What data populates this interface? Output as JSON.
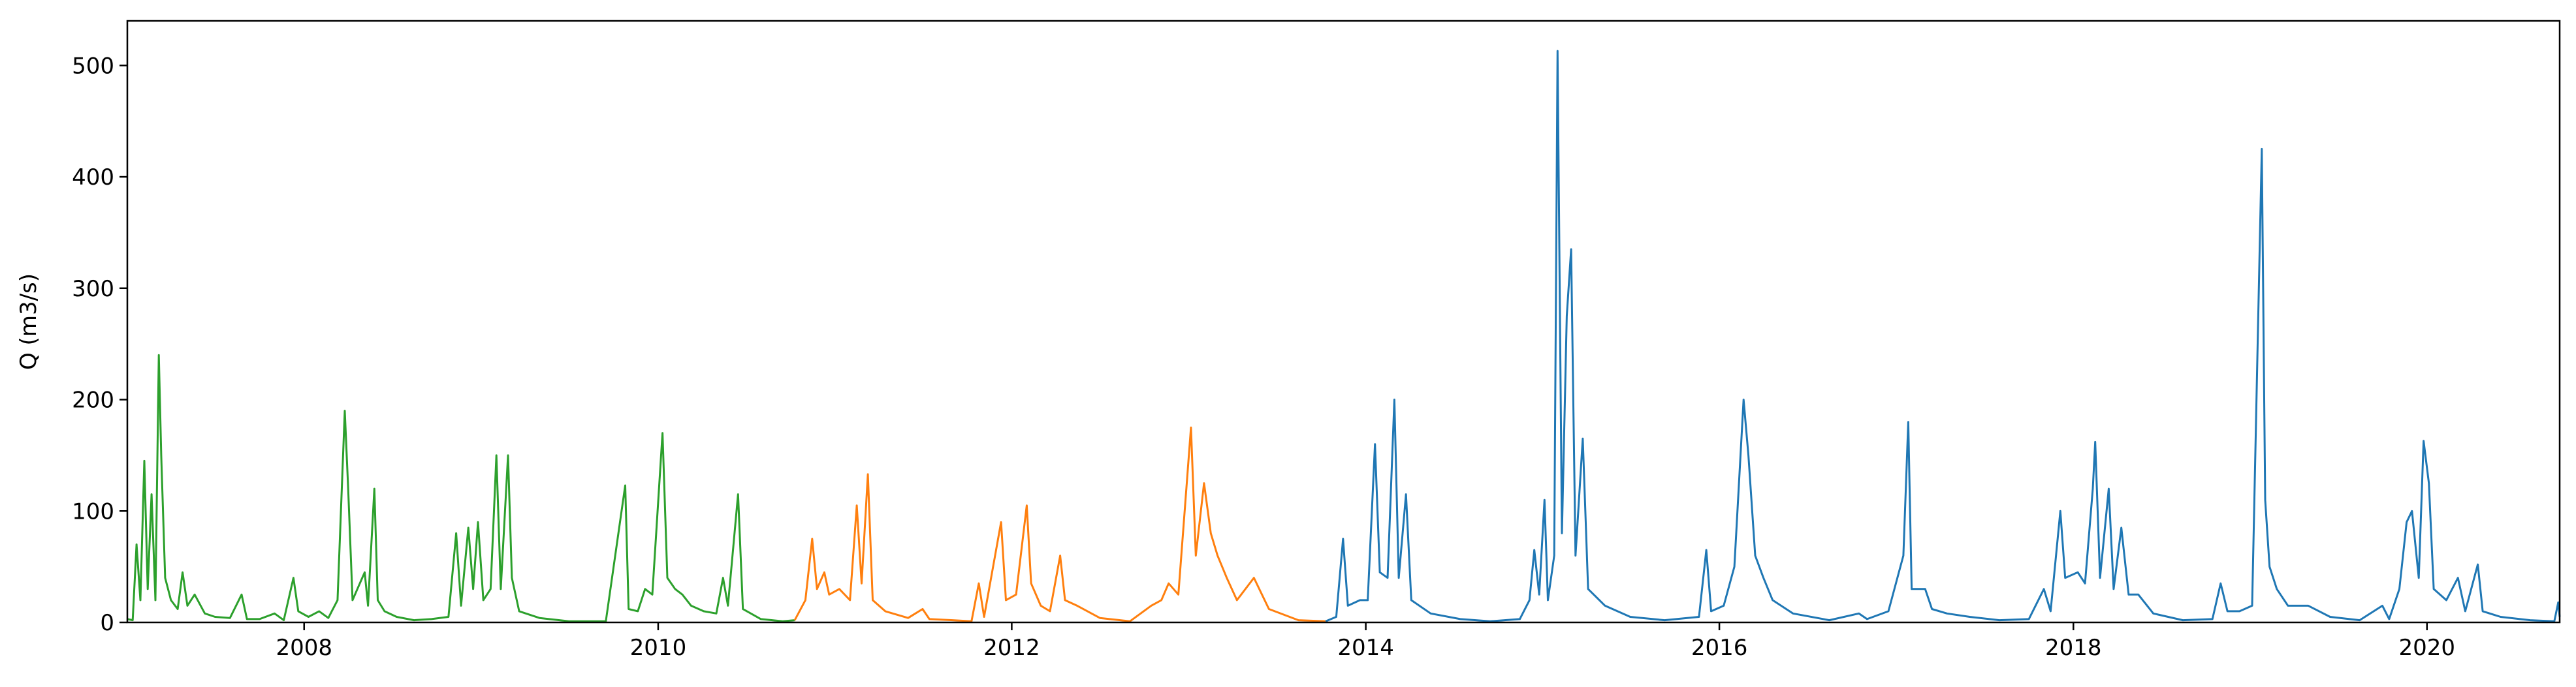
{
  "chart_data": {
    "type": "line",
    "title": "",
    "xlabel": "",
    "ylabel": "Q (m3/s)",
    "xlim": [
      "2007-01-01",
      "2020-10-01"
    ],
    "ylim": [
      0,
      540
    ],
    "x_ticks": [
      "2008",
      "2010",
      "2012",
      "2014",
      "2016",
      "2018",
      "2020"
    ],
    "y_ticks": [
      0,
      100,
      200,
      300,
      400,
      500
    ],
    "grid": false,
    "legend": "none",
    "series": [
      {
        "color": "#2ca02c",
        "points": [
          [
            "2007-01-01",
            3
          ],
          [
            "2007-01-12",
            2
          ],
          [
            "2007-01-20",
            70
          ],
          [
            "2007-01-28",
            20
          ],
          [
            "2007-02-05",
            145
          ],
          [
            "2007-02-12",
            30
          ],
          [
            "2007-02-20",
            115
          ],
          [
            "2007-02-28",
            20
          ],
          [
            "2007-03-07",
            240
          ],
          [
            "2007-03-12",
            150
          ],
          [
            "2007-03-20",
            40
          ],
          [
            "2007-04-01",
            20
          ],
          [
            "2007-04-15",
            12
          ],
          [
            "2007-04-25",
            45
          ],
          [
            "2007-05-05",
            15
          ],
          [
            "2007-05-20",
            25
          ],
          [
            "2007-06-10",
            8
          ],
          [
            "2007-07-01",
            5
          ],
          [
            "2007-08-01",
            4
          ],
          [
            "2007-08-25",
            25
          ],
          [
            "2007-09-05",
            3
          ],
          [
            "2007-10-01",
            3
          ],
          [
            "2007-11-01",
            8
          ],
          [
            "2007-11-20",
            2
          ],
          [
            "2007-12-10",
            40
          ],
          [
            "2007-12-20",
            10
          ],
          [
            "2008-01-10",
            5
          ],
          [
            "2008-02-01",
            10
          ],
          [
            "2008-02-20",
            4
          ],
          [
            "2008-03-10",
            20
          ],
          [
            "2008-03-25",
            190
          ],
          [
            "2008-04-01",
            120
          ],
          [
            "2008-04-10",
            20
          ],
          [
            "2008-04-20",
            30
          ],
          [
            "2008-05-05",
            45
          ],
          [
            "2008-05-12",
            15
          ],
          [
            "2008-05-25",
            120
          ],
          [
            "2008-06-01",
            20
          ],
          [
            "2008-06-15",
            10
          ],
          [
            "2008-07-10",
            5
          ],
          [
            "2008-08-15",
            2
          ],
          [
            "2008-09-20",
            3
          ],
          [
            "2008-10-25",
            5
          ],
          [
            "2008-11-10",
            80
          ],
          [
            "2008-11-20",
            15
          ],
          [
            "2008-12-05",
            85
          ],
          [
            "2008-12-15",
            30
          ],
          [
            "2008-12-25",
            90
          ],
          [
            "2009-01-05",
            20
          ],
          [
            "2009-01-20",
            30
          ],
          [
            "2009-02-01",
            150
          ],
          [
            "2009-02-10",
            30
          ],
          [
            "2009-02-25",
            150
          ],
          [
            "2009-03-05",
            40
          ],
          [
            "2009-03-20",
            10
          ],
          [
            "2009-05-01",
            4
          ],
          [
            "2009-07-01",
            1
          ],
          [
            "2009-09-15",
            1
          ],
          [
            "2009-10-25",
            123
          ],
          [
            "2009-11-01",
            12
          ],
          [
            "2009-11-20",
            10
          ],
          [
            "2009-12-05",
            30
          ],
          [
            "2009-12-20",
            25
          ],
          [
            "2010-01-10",
            170
          ],
          [
            "2010-01-20",
            40
          ],
          [
            "2010-02-05",
            30
          ],
          [
            "2010-02-20",
            25
          ],
          [
            "2010-03-10",
            15
          ],
          [
            "2010-04-05",
            10
          ],
          [
            "2010-05-01",
            8
          ],
          [
            "2010-05-15",
            40
          ],
          [
            "2010-05-25",
            15
          ],
          [
            "2010-06-15",
            115
          ],
          [
            "2010-06-25",
            12
          ],
          [
            "2010-08-01",
            3
          ],
          [
            "2010-09-15",
            1
          ],
          [
            "2010-10-10",
            2
          ]
        ]
      },
      {
        "color": "#ff7f0e",
        "points": [
          [
            "2010-10-10",
            2
          ],
          [
            "2010-11-01",
            20
          ],
          [
            "2010-11-15",
            75
          ],
          [
            "2010-11-25",
            30
          ],
          [
            "2010-12-10",
            45
          ],
          [
            "2010-12-20",
            25
          ],
          [
            "2011-01-10",
            30
          ],
          [
            "2011-02-01",
            20
          ],
          [
            "2011-02-15",
            105
          ],
          [
            "2011-02-25",
            35
          ],
          [
            "2011-03-10",
            133
          ],
          [
            "2011-03-20",
            20
          ],
          [
            "2011-04-15",
            10
          ],
          [
            "2011-06-01",
            4
          ],
          [
            "2011-07-01",
            12
          ],
          [
            "2011-07-15",
            3
          ],
          [
            "2011-09-01",
            2
          ],
          [
            "2011-10-10",
            1
          ],
          [
            "2011-10-25",
            35
          ],
          [
            "2011-11-05",
            5
          ],
          [
            "2011-12-10",
            90
          ],
          [
            "2011-12-20",
            20
          ],
          [
            "2012-01-10",
            25
          ],
          [
            "2012-02-01",
            105
          ],
          [
            "2012-02-10",
            35
          ],
          [
            "2012-03-01",
            15
          ],
          [
            "2012-03-20",
            10
          ],
          [
            "2012-04-10",
            60
          ],
          [
            "2012-04-20",
            20
          ],
          [
            "2012-05-15",
            15
          ],
          [
            "2012-07-01",
            4
          ],
          [
            "2012-09-01",
            1
          ],
          [
            "2012-10-15",
            15
          ],
          [
            "2012-11-05",
            20
          ],
          [
            "2012-11-20",
            35
          ],
          [
            "2012-12-10",
            25
          ],
          [
            "2013-01-05",
            175
          ],
          [
            "2013-01-15",
            60
          ],
          [
            "2013-02-01",
            125
          ],
          [
            "2013-02-15",
            80
          ],
          [
            "2013-03-01",
            60
          ],
          [
            "2013-03-20",
            40
          ],
          [
            "2013-04-10",
            20
          ],
          [
            "2013-05-15",
            40
          ],
          [
            "2013-06-15",
            12
          ],
          [
            "2013-08-15",
            2
          ],
          [
            "2013-10-10",
            1
          ]
        ]
      },
      {
        "color": "#1f77b4",
        "points": [
          [
            "2013-10-10",
            1
          ],
          [
            "2013-11-01",
            5
          ],
          [
            "2013-11-15",
            75
          ],
          [
            "2013-11-25",
            15
          ],
          [
            "2013-12-20",
            20
          ],
          [
            "2014-01-05",
            20
          ],
          [
            "2014-01-20",
            160
          ],
          [
            "2014-01-30",
            45
          ],
          [
            "2014-02-15",
            40
          ],
          [
            "2014-03-01",
            200
          ],
          [
            "2014-03-10",
            40
          ],
          [
            "2014-03-25",
            115
          ],
          [
            "2014-04-05",
            20
          ],
          [
            "2014-05-15",
            8
          ],
          [
            "2014-07-15",
            3
          ],
          [
            "2014-09-15",
            1
          ],
          [
            "2014-11-15",
            3
          ],
          [
            "2014-12-05",
            20
          ],
          [
            "2014-12-15",
            65
          ],
          [
            "2014-12-25",
            25
          ],
          [
            "2015-01-05",
            110
          ],
          [
            "2015-01-12",
            20
          ],
          [
            "2015-01-25",
            60
          ],
          [
            "2015-02-01",
            513
          ],
          [
            "2015-02-10",
            80
          ],
          [
            "2015-02-20",
            275
          ],
          [
            "2015-03-01",
            335
          ],
          [
            "2015-03-10",
            60
          ],
          [
            "2015-03-25",
            165
          ],
          [
            "2015-04-05",
            30
          ],
          [
            "2015-05-10",
            15
          ],
          [
            "2015-07-01",
            5
          ],
          [
            "2015-09-10",
            2
          ],
          [
            "2015-11-20",
            5
          ],
          [
            "2015-12-05",
            65
          ],
          [
            "2015-12-15",
            10
          ],
          [
            "2016-01-10",
            15
          ],
          [
            "2016-02-01",
            50
          ],
          [
            "2016-02-20",
            200
          ],
          [
            "2016-03-01",
            150
          ],
          [
            "2016-03-15",
            60
          ],
          [
            "2016-04-01",
            40
          ],
          [
            "2016-04-20",
            20
          ],
          [
            "2016-06-01",
            8
          ],
          [
            "2016-08-15",
            2
          ],
          [
            "2016-10-15",
            8
          ],
          [
            "2016-11-01",
            3
          ],
          [
            "2016-12-15",
            10
          ],
          [
            "2017-01-15",
            60
          ],
          [
            "2017-01-25",
            180
          ],
          [
            "2017-02-01",
            30
          ],
          [
            "2017-03-01",
            30
          ],
          [
            "2017-03-15",
            12
          ],
          [
            "2017-04-15",
            8
          ],
          [
            "2017-06-01",
            5
          ],
          [
            "2017-08-01",
            2
          ],
          [
            "2017-10-01",
            3
          ],
          [
            "2017-11-01",
            30
          ],
          [
            "2017-11-15",
            10
          ],
          [
            "2017-12-05",
            100
          ],
          [
            "2017-12-15",
            40
          ],
          [
            "2018-01-10",
            45
          ],
          [
            "2018-01-25",
            35
          ],
          [
            "2018-02-10",
            120
          ],
          [
            "2018-02-15",
            162
          ],
          [
            "2018-02-25",
            40
          ],
          [
            "2018-03-15",
            120
          ],
          [
            "2018-03-25",
            30
          ],
          [
            "2018-04-10",
            85
          ],
          [
            "2018-04-25",
            25
          ],
          [
            "2018-05-15",
            25
          ],
          [
            "2018-06-15",
            8
          ],
          [
            "2018-08-15",
            2
          ],
          [
            "2018-10-15",
            3
          ],
          [
            "2018-11-01",
            35
          ],
          [
            "2018-11-15",
            10
          ],
          [
            "2018-12-10",
            10
          ],
          [
            "2019-01-05",
            15
          ],
          [
            "2019-01-25",
            425
          ],
          [
            "2019-02-01",
            110
          ],
          [
            "2019-02-10",
            50
          ],
          [
            "2019-02-25",
            30
          ],
          [
            "2019-03-20",
            15
          ],
          [
            "2019-05-01",
            15
          ],
          [
            "2019-06-15",
            5
          ],
          [
            "2019-08-15",
            2
          ],
          [
            "2019-10-01",
            15
          ],
          [
            "2019-10-15",
            3
          ],
          [
            "2019-11-05",
            30
          ],
          [
            "2019-11-20",
            90
          ],
          [
            "2019-12-01",
            100
          ],
          [
            "2019-12-15",
            40
          ],
          [
            "2019-12-25",
            163
          ],
          [
            "2020-01-05",
            125
          ],
          [
            "2020-01-15",
            30
          ],
          [
            "2020-02-10",
            20
          ],
          [
            "2020-03-05",
            40
          ],
          [
            "2020-03-20",
            10
          ],
          [
            "2020-04-15",
            52
          ],
          [
            "2020-04-25",
            10
          ],
          [
            "2020-06-01",
            5
          ],
          [
            "2020-08-01",
            2
          ],
          [
            "2020-09-20",
            1
          ],
          [
            "2020-09-28",
            18
          ],
          [
            "2020-10-01",
            5
          ]
        ]
      }
    ]
  }
}
